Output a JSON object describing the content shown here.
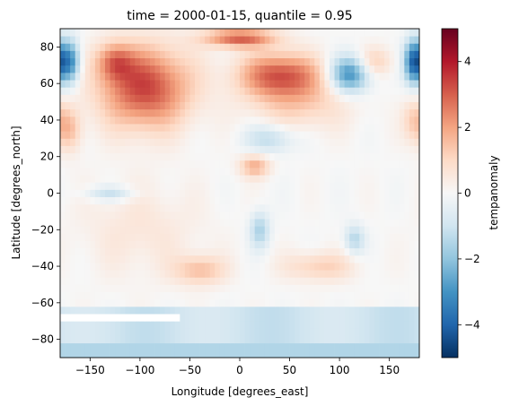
{
  "chart_data": {
    "type": "heatmap",
    "title": "time = 2000-01-15, quantile = 0.95",
    "xlabel": "Longitude [degrees_east]",
    "ylabel": "Latitude [degrees_north]",
    "xlim": [
      -180,
      180
    ],
    "ylim": [
      -90,
      90
    ],
    "x_ticks": [
      -150,
      -100,
      -50,
      0,
      50,
      100,
      150
    ],
    "y_ticks": [
      -80,
      -60,
      -40,
      -20,
      0,
      20,
      40,
      60,
      80
    ],
    "colorbar": {
      "label": "tempanomaly",
      "colormap": "RdBu_r",
      "vmin": -5,
      "vmax": 5,
      "ticks": [
        -4,
        -2,
        0,
        2,
        4
      ]
    },
    "grid": false,
    "features": [
      {
        "lon": -95,
        "lat": 58,
        "sx": 45,
        "sy": 22,
        "value": 3.4
      },
      {
        "lon": -125,
        "lat": 72,
        "sx": 18,
        "sy": 10,
        "value": 2.0
      },
      {
        "lon": 40,
        "lat": 65,
        "sx": 40,
        "sy": 12,
        "value": 3.0
      },
      {
        "lon": 0,
        "lat": 85,
        "sx": 35,
        "sy": 5,
        "value": 3.0
      },
      {
        "lon": 110,
        "lat": 65,
        "sx": 20,
        "sy": 10,
        "value": -3.2
      },
      {
        "lon": 135,
        "lat": 72,
        "sx": 18,
        "sy": 8,
        "value": 1.2
      },
      {
        "lon": -170,
        "lat": 72,
        "sx": 10,
        "sy": 12,
        "value": -3.2
      },
      {
        "lon": 175,
        "lat": 72,
        "sx": 10,
        "sy": 12,
        "value": -4.2
      },
      {
        "lon": 30,
        "lat": 30,
        "sx": 25,
        "sy": 8,
        "value": -1.3
      },
      {
        "lon": 15,
        "lat": 15,
        "sx": 15,
        "sy": 6,
        "value": 1.8
      },
      {
        "lon": -170,
        "lat": 35,
        "sx": 12,
        "sy": 12,
        "value": 1.4
      },
      {
        "lon": 175,
        "lat": 40,
        "sx": 12,
        "sy": 12,
        "value": 1.2
      },
      {
        "lon": -130,
        "lat": 0,
        "sx": 25,
        "sy": 4,
        "value": -1.2
      },
      {
        "lon": 20,
        "lat": -20,
        "sx": 10,
        "sy": 10,
        "value": -1.6
      },
      {
        "lon": 115,
        "lat": -25,
        "sx": 10,
        "sy": 8,
        "value": -1.4
      },
      {
        "lon": -40,
        "lat": -42,
        "sx": 25,
        "sy": 8,
        "value": 1.5
      },
      {
        "lon": 80,
        "lat": -40,
        "sx": 35,
        "sy": 8,
        "value": 1.2
      },
      {
        "lon": -100,
        "lat": -20,
        "sx": 60,
        "sy": 25,
        "value": 0.6
      },
      {
        "lon": 60,
        "lat": 50,
        "sx": 50,
        "sy": 15,
        "value": 1.2
      }
    ],
    "missing_data_color": "#ffffff"
  }
}
